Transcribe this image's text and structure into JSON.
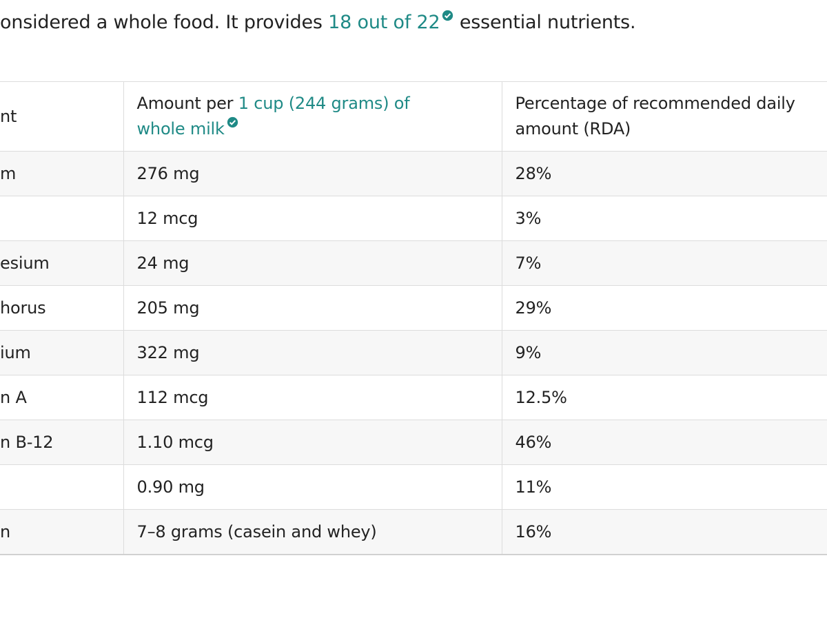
{
  "intro": {
    "before": "onsidered a whole food. It provides ",
    "link": "18 out of 22",
    "after": " essential nutrients."
  },
  "table": {
    "headers": [
      "nt",
      {
        "before": "Amount per ",
        "link": "1 cup (244 grams) of whole milk"
      },
      "Percentage of recommended daily amount (RDA)"
    ],
    "rows": [
      [
        "m",
        "276 mg",
        "28%"
      ],
      [
        null,
        "12 mcg",
        "3%"
      ],
      [
        "esium",
        "24 mg",
        "7%"
      ],
      [
        "horus",
        "205 mg",
        "29%"
      ],
      [
        "ium",
        "322 mg",
        "9%"
      ],
      [
        "n A",
        "112 mcg",
        "12.5%"
      ],
      [
        "n B-12",
        "1.10 mcg",
        "46%"
      ],
      [
        null,
        "0.90 mg",
        "11%"
      ],
      [
        "n",
        "7–8 grams (casein and whey)",
        "16%"
      ]
    ]
  }
}
